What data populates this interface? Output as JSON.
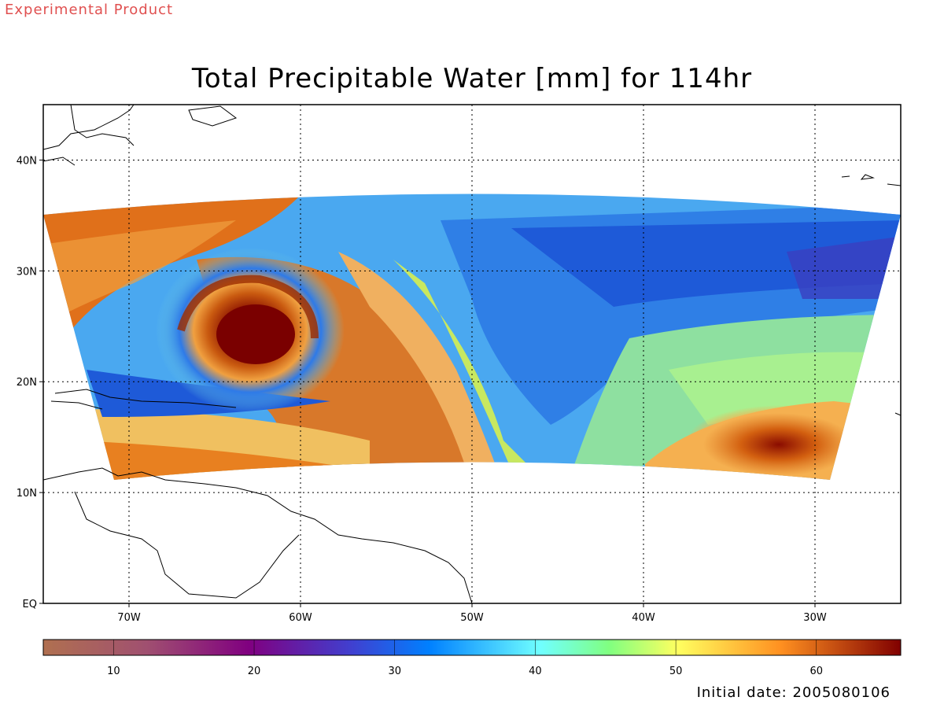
{
  "product_badge": "Experimental Product",
  "title": "Total Precipitable Water [mm] for 114hr",
  "footer": {
    "init_label": "Initial date: 2005080106"
  },
  "map": {
    "lon_range": [
      -75,
      -25
    ],
    "lat_range": [
      0,
      45
    ],
    "lat_ticks": [
      {
        "value": 40,
        "label": "40N"
      },
      {
        "value": 30,
        "label": "30N"
      },
      {
        "value": 20,
        "label": "20N"
      },
      {
        "value": 10,
        "label": "10N"
      },
      {
        "value": 0,
        "label": "EQ"
      }
    ],
    "lon_ticks": [
      {
        "value": -70,
        "label": "70W"
      },
      {
        "value": -60,
        "label": "60W"
      },
      {
        "value": -50,
        "label": "50W"
      },
      {
        "value": -40,
        "label": "40W"
      },
      {
        "value": -30,
        "label": "30W"
      }
    ],
    "grid": "dotted"
  },
  "colorbar": {
    "range": [
      5,
      66
    ],
    "ticks": [
      10,
      20,
      30,
      40,
      50,
      60
    ]
  }
}
